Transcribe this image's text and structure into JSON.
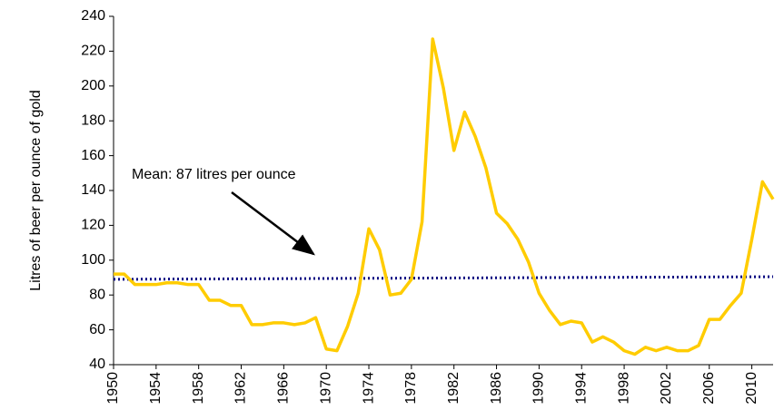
{
  "chart_data": {
    "type": "line",
    "y_label": "Litres of beer per ounce of gold",
    "x": [
      1950,
      1951,
      1952,
      1953,
      1954,
      1955,
      1956,
      1957,
      1958,
      1959,
      1960,
      1961,
      1962,
      1963,
      1964,
      1965,
      1966,
      1967,
      1968,
      1969,
      1970,
      1971,
      1972,
      1973,
      1974,
      1975,
      1976,
      1977,
      1978,
      1979,
      1980,
      1981,
      1982,
      1983,
      1984,
      1985,
      1986,
      1987,
      1988,
      1989,
      1990,
      1991,
      1992,
      1993,
      1994,
      1995,
      1996,
      1997,
      1998,
      1999,
      2000,
      2001,
      2002,
      2003,
      2004,
      2005,
      2006,
      2007,
      2008,
      2009,
      2010,
      2011,
      2012
    ],
    "values": [
      92,
      92,
      86,
      86,
      86,
      87,
      87,
      86,
      86,
      77,
      77,
      74,
      74,
      63,
      63,
      64,
      64,
      63,
      64,
      67,
      49,
      48,
      62,
      81,
      118,
      106,
      80,
      81,
      89,
      122,
      227,
      199,
      163,
      185,
      171,
      153,
      127,
      121,
      112,
      99,
      81,
      71,
      63,
      65,
      64,
      53,
      56,
      53,
      48,
      46,
      50,
      48,
      50,
      48,
      48,
      51,
      66,
      66,
      74,
      81,
      112,
      145,
      135
    ],
    "color": "#ffcc00",
    "xlim": [
      1950,
      2012
    ],
    "xticks": [
      1950,
      1954,
      1958,
      1962,
      1966,
      1970,
      1974,
      1978,
      1982,
      1986,
      1990,
      1994,
      1998,
      2002,
      2006,
      2010
    ],
    "ylim": [
      40,
      240
    ],
    "yticks": [
      40,
      60,
      80,
      100,
      120,
      140,
      160,
      180,
      200,
      220,
      240
    ],
    "mean": {
      "label": "Mean: 87 litres per ounce",
      "y_start": 89,
      "y_end": 90.5,
      "color": "#000080"
    }
  }
}
